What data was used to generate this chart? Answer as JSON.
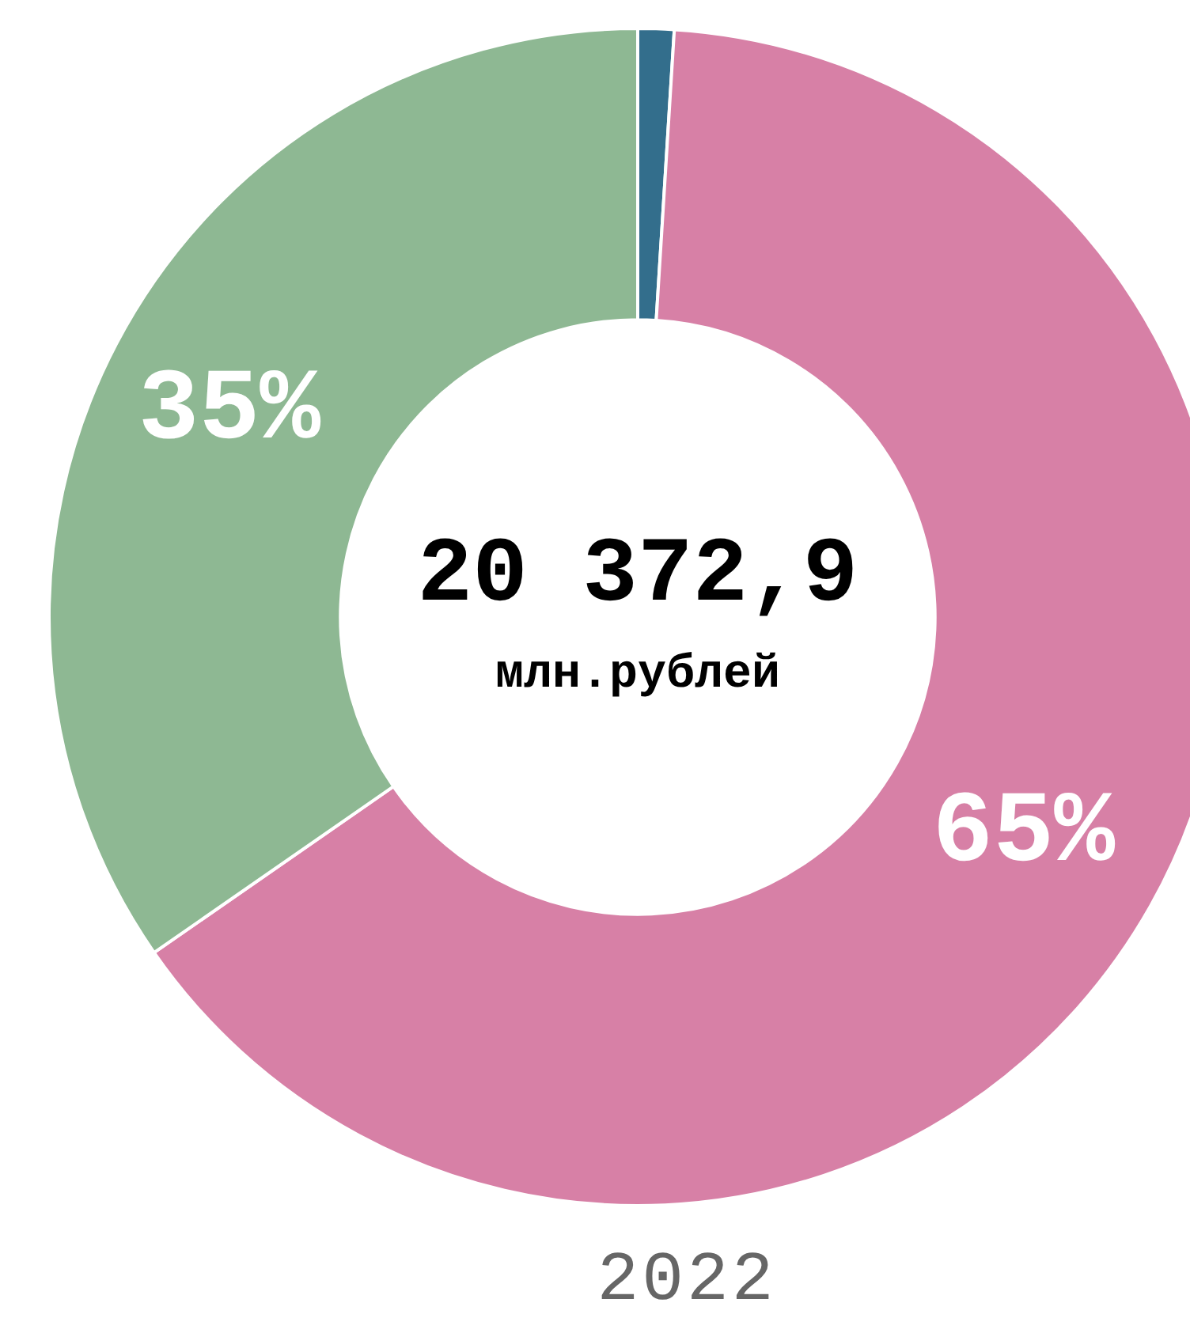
{
  "chart_data": {
    "type": "donut",
    "title": "2022",
    "annotations": [
      "20 372,9",
      "млн.рублей"
    ],
    "categories": [
      null,
      null,
      null
    ],
    "values": [
      1,
      65,
      35
    ],
    "colors": [
      "#336e8c",
      "#d780a6",
      "#8eb893"
    ],
    "value_labels": [
      null,
      "65%",
      "35%"
    ],
    "legend": false
  }
}
